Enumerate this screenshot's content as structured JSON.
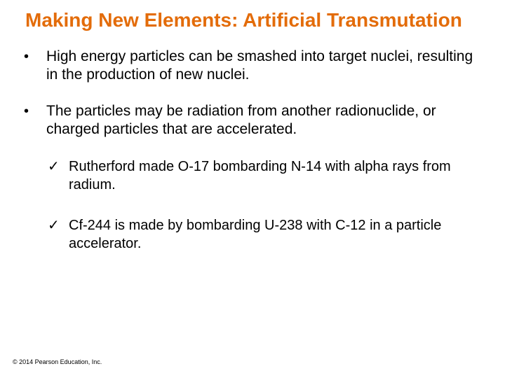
{
  "title_color": "#e36c0a",
  "text_color": "#000000",
  "background_color": "#ffffff",
  "title_fontsize": 28,
  "body_fontsize": 21,
  "sub_fontsize": 20,
  "slide": {
    "title": "Making New Elements: Artificial Transmutation",
    "bullets": [
      {
        "marker": "•",
        "text": "High energy particles can be smashed into target nuclei, resulting in the production of new nuclei."
      },
      {
        "marker": "•",
        "text": "The particles may be radiation from another radionuclide, or charged particles that are accelerated."
      }
    ],
    "subs": [
      {
        "marker": "✓",
        "text": "Rutherford made O-17 bombarding N-14 with alpha rays from radium."
      },
      {
        "marker": "✓",
        "text": "Cf-244 is made by bombarding U-238 with C-12 in a particle accelerator."
      }
    ],
    "copyright": "© 2014 Pearson Education, Inc."
  }
}
